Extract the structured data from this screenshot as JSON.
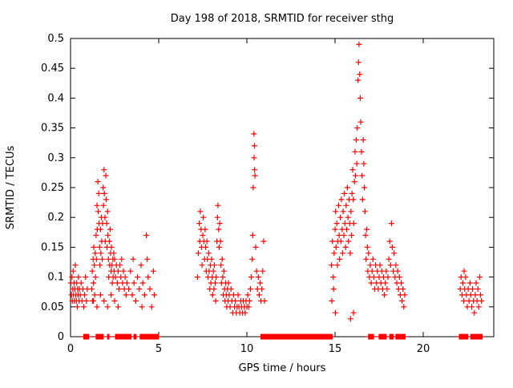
{
  "chart_data": {
    "type": "scatter",
    "title": "Day 198 of 2018, SRMTID for receiver sthg",
    "xlabel": "GPS time / hours",
    "ylabel": "SRMTID / TECUs",
    "xlim": [
      0,
      24
    ],
    "ylim": [
      0,
      0.5
    ],
    "grid": false,
    "legend": "none",
    "marker": "+",
    "colors": {
      "point": "#ff0000",
      "frame": "#000000"
    },
    "xticks": {
      "values": [
        0,
        5,
        10,
        15,
        20
      ],
      "labels": [
        "0",
        "5",
        "10",
        "15",
        "20"
      ]
    },
    "yticks": {
      "values": [
        0,
        0.05,
        0.1,
        0.15,
        0.2,
        0.25,
        0.3,
        0.35,
        0.4,
        0.45,
        0.5
      ],
      "labels": [
        "0",
        "0.05",
        "0.1",
        "0.15",
        "0.2",
        "0.25",
        "0.3",
        "0.35",
        "0.4",
        "0.45",
        "0.5"
      ]
    },
    "zero_runs": [
      [
        0.75,
        1.05
      ],
      [
        1.45,
        1.85
      ],
      [
        2.1,
        2.2
      ],
      [
        2.55,
        3.45
      ],
      [
        3.6,
        3.75
      ],
      [
        3.95,
        5.0
      ],
      [
        10.8,
        14.85
      ],
      [
        16.9,
        17.2
      ],
      [
        17.5,
        17.9
      ],
      [
        18.1,
        18.3
      ],
      [
        18.45,
        19.0
      ],
      [
        22.05,
        22.55
      ],
      [
        22.7,
        23.35
      ]
    ],
    "zero_spacing": 0.04,
    "points": [
      [
        0.02,
        0.09
      ],
      [
        0.05,
        0.07
      ],
      [
        0.08,
        0.1
      ],
      [
        0.1,
        0.06
      ],
      [
        0.13,
        0.08
      ],
      [
        0.15,
        0.11
      ],
      [
        0.17,
        0.07
      ],
      [
        0.2,
        0.09
      ],
      [
        0.22,
        0.06
      ],
      [
        0.25,
        0.08
      ],
      [
        0.27,
        0.12
      ],
      [
        0.3,
        0.07
      ],
      [
        0.33,
        0.06
      ],
      [
        0.35,
        0.09
      ],
      [
        0.38,
        0.05
      ],
      [
        0.4,
        0.08
      ],
      [
        0.43,
        0.07
      ],
      [
        0.45,
        0.1
      ],
      [
        0.48,
        0.06
      ],
      [
        0.5,
        0.08
      ],
      [
        0.55,
        0.07
      ],
      [
        0.6,
        0.09
      ],
      [
        0.65,
        0.06
      ],
      [
        0.7,
        0.08
      ],
      [
        0.75,
        0.05
      ],
      [
        0.8,
        0.07
      ],
      [
        0.85,
        0.1
      ],
      [
        0.9,
        0.06
      ],
      [
        0.95,
        0.08
      ],
      [
        1.2,
        0.08
      ],
      [
        1.23,
        0.11
      ],
      [
        1.25,
        0.06
      ],
      [
        1.28,
        0.13
      ],
      [
        1.3,
        0.09
      ],
      [
        1.32,
        0.15
      ],
      [
        1.35,
        0.12
      ],
      [
        1.37,
        0.07
      ],
      [
        1.4,
        0.14
      ],
      [
        1.42,
        0.1
      ],
      [
        1.45,
        0.17
      ],
      [
        1.47,
        0.13
      ],
      [
        1.5,
        0.22
      ],
      [
        1.52,
        0.18
      ],
      [
        1.55,
        0.26
      ],
      [
        1.57,
        0.21
      ],
      [
        1.6,
        0.24
      ],
      [
        1.62,
        0.19
      ],
      [
        1.65,
        0.15
      ],
      [
        1.67,
        0.12
      ],
      [
        1.7,
        0.18
      ],
      [
        1.72,
        0.14
      ],
      [
        1.75,
        0.2
      ],
      [
        1.77,
        0.16
      ],
      [
        1.8,
        0.13
      ],
      [
        1.82,
        0.19
      ],
      [
        1.85,
        0.25
      ],
      [
        1.87,
        0.22
      ],
      [
        1.9,
        0.28
      ],
      [
        1.92,
        0.24
      ],
      [
        1.95,
        0.2
      ],
      [
        1.97,
        0.16
      ],
      [
        2.0,
        0.27
      ],
      [
        2.02,
        0.23
      ],
      [
        2.05,
        0.19
      ],
      [
        2.07,
        0.15
      ],
      [
        2.1,
        0.21
      ],
      [
        2.12,
        0.17
      ],
      [
        2.15,
        0.13
      ],
      [
        2.17,
        0.1
      ],
      [
        2.2,
        0.16
      ],
      [
        2.22,
        0.12
      ],
      [
        2.25,
        0.18
      ],
      [
        2.27,
        0.14
      ],
      [
        2.3,
        0.11
      ],
      [
        2.32,
        0.15
      ],
      [
        2.35,
        0.12
      ],
      [
        2.37,
        0.09
      ],
      [
        2.4,
        0.13
      ],
      [
        2.42,
        0.1
      ],
      [
        2.45,
        0.14
      ],
      [
        2.47,
        0.11
      ],
      [
        2.5,
        0.13
      ],
      [
        2.55,
        0.1
      ],
      [
        2.6,
        0.12
      ],
      [
        2.65,
        0.09
      ],
      [
        2.7,
        0.11
      ],
      [
        2.75,
        0.08
      ],
      [
        2.8,
        0.12
      ],
      [
        2.85,
        0.1
      ],
      [
        2.9,
        0.13
      ],
      [
        2.95,
        0.09
      ],
      [
        3.0,
        0.11
      ],
      [
        3.05,
        0.08
      ],
      [
        3.1,
        0.1
      ],
      [
        3.15,
        0.07
      ],
      [
        3.2,
        0.09
      ],
      [
        1.3,
        0.06
      ],
      [
        1.5,
        0.05
      ],
      [
        1.7,
        0.07
      ],
      [
        1.9,
        0.06
      ],
      [
        2.1,
        0.05
      ],
      [
        2.3,
        0.07
      ],
      [
        2.5,
        0.06
      ],
      [
        2.7,
        0.05
      ],
      [
        3.3,
        0.08
      ],
      [
        3.4,
        0.11
      ],
      [
        3.5,
        0.07
      ],
      [
        3.55,
        0.13
      ],
      [
        3.6,
        0.09
      ],
      [
        3.7,
        0.06
      ],
      [
        3.8,
        0.1
      ],
      [
        3.9,
        0.08
      ],
      [
        4.0,
        0.12
      ],
      [
        4.05,
        0.05
      ],
      [
        4.1,
        0.09
      ],
      [
        4.2,
        0.07
      ],
      [
        4.3,
        0.17
      ],
      [
        4.35,
        0.13
      ],
      [
        4.4,
        0.1
      ],
      [
        4.5,
        0.08
      ],
      [
        4.6,
        0.05
      ],
      [
        4.7,
        0.11
      ],
      [
        4.75,
        0.07
      ],
      [
        7.2,
        0.1
      ],
      [
        7.25,
        0.14
      ],
      [
        7.3,
        0.19
      ],
      [
        7.33,
        0.16
      ],
      [
        7.36,
        0.21
      ],
      [
        7.4,
        0.18
      ],
      [
        7.43,
        0.15
      ],
      [
        7.46,
        0.12
      ],
      [
        7.5,
        0.17
      ],
      [
        7.53,
        0.2
      ],
      [
        7.56,
        0.16
      ],
      [
        7.6,
        0.13
      ],
      [
        7.63,
        0.18
      ],
      [
        7.66,
        0.15
      ],
      [
        7.7,
        0.11
      ],
      [
        7.73,
        0.16
      ],
      [
        7.76,
        0.13
      ],
      [
        7.8,
        0.1
      ],
      [
        7.83,
        0.14
      ],
      [
        7.86,
        0.11
      ],
      [
        7.9,
        0.08
      ],
      [
        7.93,
        0.12
      ],
      [
        7.96,
        0.09
      ],
      [
        8.0,
        0.13
      ],
      [
        8.03,
        0.1
      ],
      [
        8.06,
        0.07
      ],
      [
        8.1,
        0.11
      ],
      [
        8.13,
        0.08
      ],
      [
        8.16,
        0.12
      ],
      [
        8.2,
        0.09
      ],
      [
        8.23,
        0.06
      ],
      [
        8.26,
        0.1
      ],
      [
        8.3,
        0.16
      ],
      [
        8.33,
        0.2
      ],
      [
        8.36,
        0.22
      ],
      [
        8.4,
        0.18
      ],
      [
        8.43,
        0.15
      ],
      [
        8.46,
        0.19
      ],
      [
        8.5,
        0.16
      ],
      [
        8.53,
        0.12
      ],
      [
        8.56,
        0.09
      ],
      [
        8.6,
        0.13
      ],
      [
        8.63,
        0.1
      ],
      [
        8.66,
        0.07
      ],
      [
        8.7,
        0.11
      ],
      [
        8.73,
        0.08
      ],
      [
        8.76,
        0.06
      ],
      [
        8.8,
        0.09
      ],
      [
        8.83,
        0.07
      ],
      [
        8.86,
        0.05
      ],
      [
        8.9,
        0.08
      ],
      [
        8.93,
        0.06
      ],
      [
        8.96,
        0.09
      ],
      [
        9.0,
        0.07
      ],
      [
        9.05,
        0.05
      ],
      [
        9.1,
        0.08
      ],
      [
        9.15,
        0.06
      ],
      [
        9.2,
        0.04
      ],
      [
        9.25,
        0.07
      ],
      [
        9.3,
        0.05
      ],
      [
        9.35,
        0.06
      ],
      [
        9.4,
        0.04
      ],
      [
        9.45,
        0.05
      ],
      [
        9.5,
        0.07
      ],
      [
        9.55,
        0.05
      ],
      [
        9.6,
        0.04
      ],
      [
        9.65,
        0.06
      ],
      [
        9.7,
        0.05
      ],
      [
        9.75,
        0.04
      ],
      [
        9.8,
        0.06
      ],
      [
        9.85,
        0.05
      ],
      [
        9.9,
        0.04
      ],
      [
        9.95,
        0.06
      ],
      [
        10.0,
        0.05
      ],
      [
        10.05,
        0.07
      ],
      [
        10.1,
        0.05
      ],
      [
        10.15,
        0.06
      ],
      [
        10.2,
        0.08
      ],
      [
        10.25,
        0.1
      ],
      [
        10.3,
        0.13
      ],
      [
        10.33,
        0.17
      ],
      [
        10.36,
        0.25
      ],
      [
        10.4,
        0.34
      ],
      [
        10.41,
        0.3
      ],
      [
        10.43,
        0.32
      ],
      [
        10.44,
        0.28
      ],
      [
        10.46,
        0.27
      ],
      [
        10.5,
        0.15
      ],
      [
        10.55,
        0.11
      ],
      [
        10.6,
        0.08
      ],
      [
        10.65,
        0.1
      ],
      [
        10.7,
        0.07
      ],
      [
        10.75,
        0.09
      ],
      [
        10.8,
        0.06
      ],
      [
        10.85,
        0.08
      ],
      [
        10.9,
        0.11
      ],
      [
        10.95,
        0.16
      ],
      [
        11.0,
        0.06
      ],
      [
        14.8,
        0.12
      ],
      [
        14.82,
        0.06
      ],
      [
        14.85,
        0.16
      ],
      [
        14.9,
        0.1
      ],
      [
        14.92,
        0.08
      ],
      [
        14.95,
        0.14
      ],
      [
        15.0,
        0.18
      ],
      [
        15.02,
        0.04
      ],
      [
        15.03,
        0.21
      ],
      [
        15.06,
        0.15
      ],
      [
        15.1,
        0.19
      ],
      [
        15.13,
        0.12
      ],
      [
        15.16,
        0.16
      ],
      [
        15.2,
        0.22
      ],
      [
        15.23,
        0.17
      ],
      [
        15.26,
        0.13
      ],
      [
        15.3,
        0.2
      ],
      [
        15.33,
        0.16
      ],
      [
        15.36,
        0.23
      ],
      [
        15.4,
        0.18
      ],
      [
        15.43,
        0.14
      ],
      [
        15.46,
        0.21
      ],
      [
        15.5,
        0.17
      ],
      [
        15.53,
        0.24
      ],
      [
        15.56,
        0.19
      ],
      [
        15.6,
        0.15
      ],
      [
        15.63,
        0.22
      ],
      [
        15.66,
        0.18
      ],
      [
        15.7,
        0.25
      ],
      [
        15.73,
        0.2
      ],
      [
        15.76,
        0.16
      ],
      [
        15.8,
        0.23
      ],
      [
        15.83,
        0.19
      ],
      [
        15.86,
        0.14
      ],
      [
        15.88,
        0.03
      ],
      [
        15.9,
        0.21
      ],
      [
        15.93,
        0.17
      ],
      [
        15.96,
        0.24
      ],
      [
        16.0,
        0.28
      ],
      [
        16.03,
        0.23
      ],
      [
        16.05,
        0.04
      ],
      [
        16.06,
        0.19
      ],
      [
        16.1,
        0.26
      ],
      [
        16.13,
        0.31
      ],
      [
        16.16,
        0.27
      ],
      [
        16.2,
        0.33
      ],
      [
        16.23,
        0.29
      ],
      [
        16.26,
        0.35
      ],
      [
        16.3,
        0.43
      ],
      [
        16.33,
        0.46
      ],
      [
        16.36,
        0.49
      ],
      [
        16.4,
        0.44
      ],
      [
        16.43,
        0.4
      ],
      [
        16.46,
        0.36
      ],
      [
        16.5,
        0.31
      ],
      [
        16.53,
        0.27
      ],
      [
        16.56,
        0.23
      ],
      [
        16.6,
        0.33
      ],
      [
        16.63,
        0.29
      ],
      [
        16.66,
        0.25
      ],
      [
        16.7,
        0.21
      ],
      [
        16.73,
        0.17
      ],
      [
        16.76,
        0.13
      ],
      [
        16.8,
        0.18
      ],
      [
        16.83,
        0.15
      ],
      [
        16.86,
        0.11
      ],
      [
        16.9,
        0.14
      ],
      [
        16.95,
        0.1
      ],
      [
        17.0,
        0.12
      ],
      [
        17.05,
        0.09
      ],
      [
        17.1,
        0.11
      ],
      [
        17.15,
        0.13
      ],
      [
        17.2,
        0.1
      ],
      [
        17.25,
        0.08
      ],
      [
        17.3,
        0.12
      ],
      [
        17.35,
        0.09
      ],
      [
        17.4,
        0.11
      ],
      [
        17.45,
        0.08
      ],
      [
        17.5,
        0.1
      ],
      [
        17.55,
        0.12
      ],
      [
        17.6,
        0.09
      ],
      [
        17.65,
        0.11
      ],
      [
        17.7,
        0.08
      ],
      [
        17.75,
        0.1
      ],
      [
        17.8,
        0.07
      ],
      [
        17.85,
        0.09
      ],
      [
        17.9,
        0.11
      ],
      [
        17.95,
        0.08
      ],
      [
        18.0,
        0.1
      ],
      [
        18.05,
        0.13
      ],
      [
        18.1,
        0.16
      ],
      [
        18.15,
        0.12
      ],
      [
        18.2,
        0.19
      ],
      [
        18.25,
        0.15
      ],
      [
        18.3,
        0.11
      ],
      [
        18.35,
        0.14
      ],
      [
        18.4,
        0.1
      ],
      [
        18.45,
        0.12
      ],
      [
        18.5,
        0.09
      ],
      [
        18.55,
        0.11
      ],
      [
        18.6,
        0.08
      ],
      [
        18.65,
        0.1
      ],
      [
        18.7,
        0.07
      ],
      [
        18.75,
        0.09
      ],
      [
        18.8,
        0.06
      ],
      [
        18.85,
        0.08
      ],
      [
        18.9,
        0.05
      ],
      [
        18.95,
        0.07
      ],
      [
        22.1,
        0.08
      ],
      [
        22.15,
        0.1
      ],
      [
        22.2,
        0.07
      ],
      [
        22.25,
        0.09
      ],
      [
        22.3,
        0.06
      ],
      [
        22.32,
        0.11
      ],
      [
        22.35,
        0.08
      ],
      [
        22.4,
        0.1
      ],
      [
        22.45,
        0.07
      ],
      [
        22.5,
        0.05
      ],
      [
        22.55,
        0.08
      ],
      [
        22.6,
        0.06
      ],
      [
        22.65,
        0.09
      ],
      [
        22.7,
        0.07
      ],
      [
        22.75,
        0.05
      ],
      [
        22.8,
        0.08
      ],
      [
        22.85,
        0.06
      ],
      [
        22.9,
        0.04
      ],
      [
        22.95,
        0.07
      ],
      [
        23.0,
        0.09
      ],
      [
        23.05,
        0.06
      ],
      [
        23.1,
        0.08
      ],
      [
        23.15,
        0.05
      ],
      [
        23.2,
        0.1
      ],
      [
        23.25,
        0.07
      ],
      [
        23.3,
        0.06
      ]
    ]
  }
}
